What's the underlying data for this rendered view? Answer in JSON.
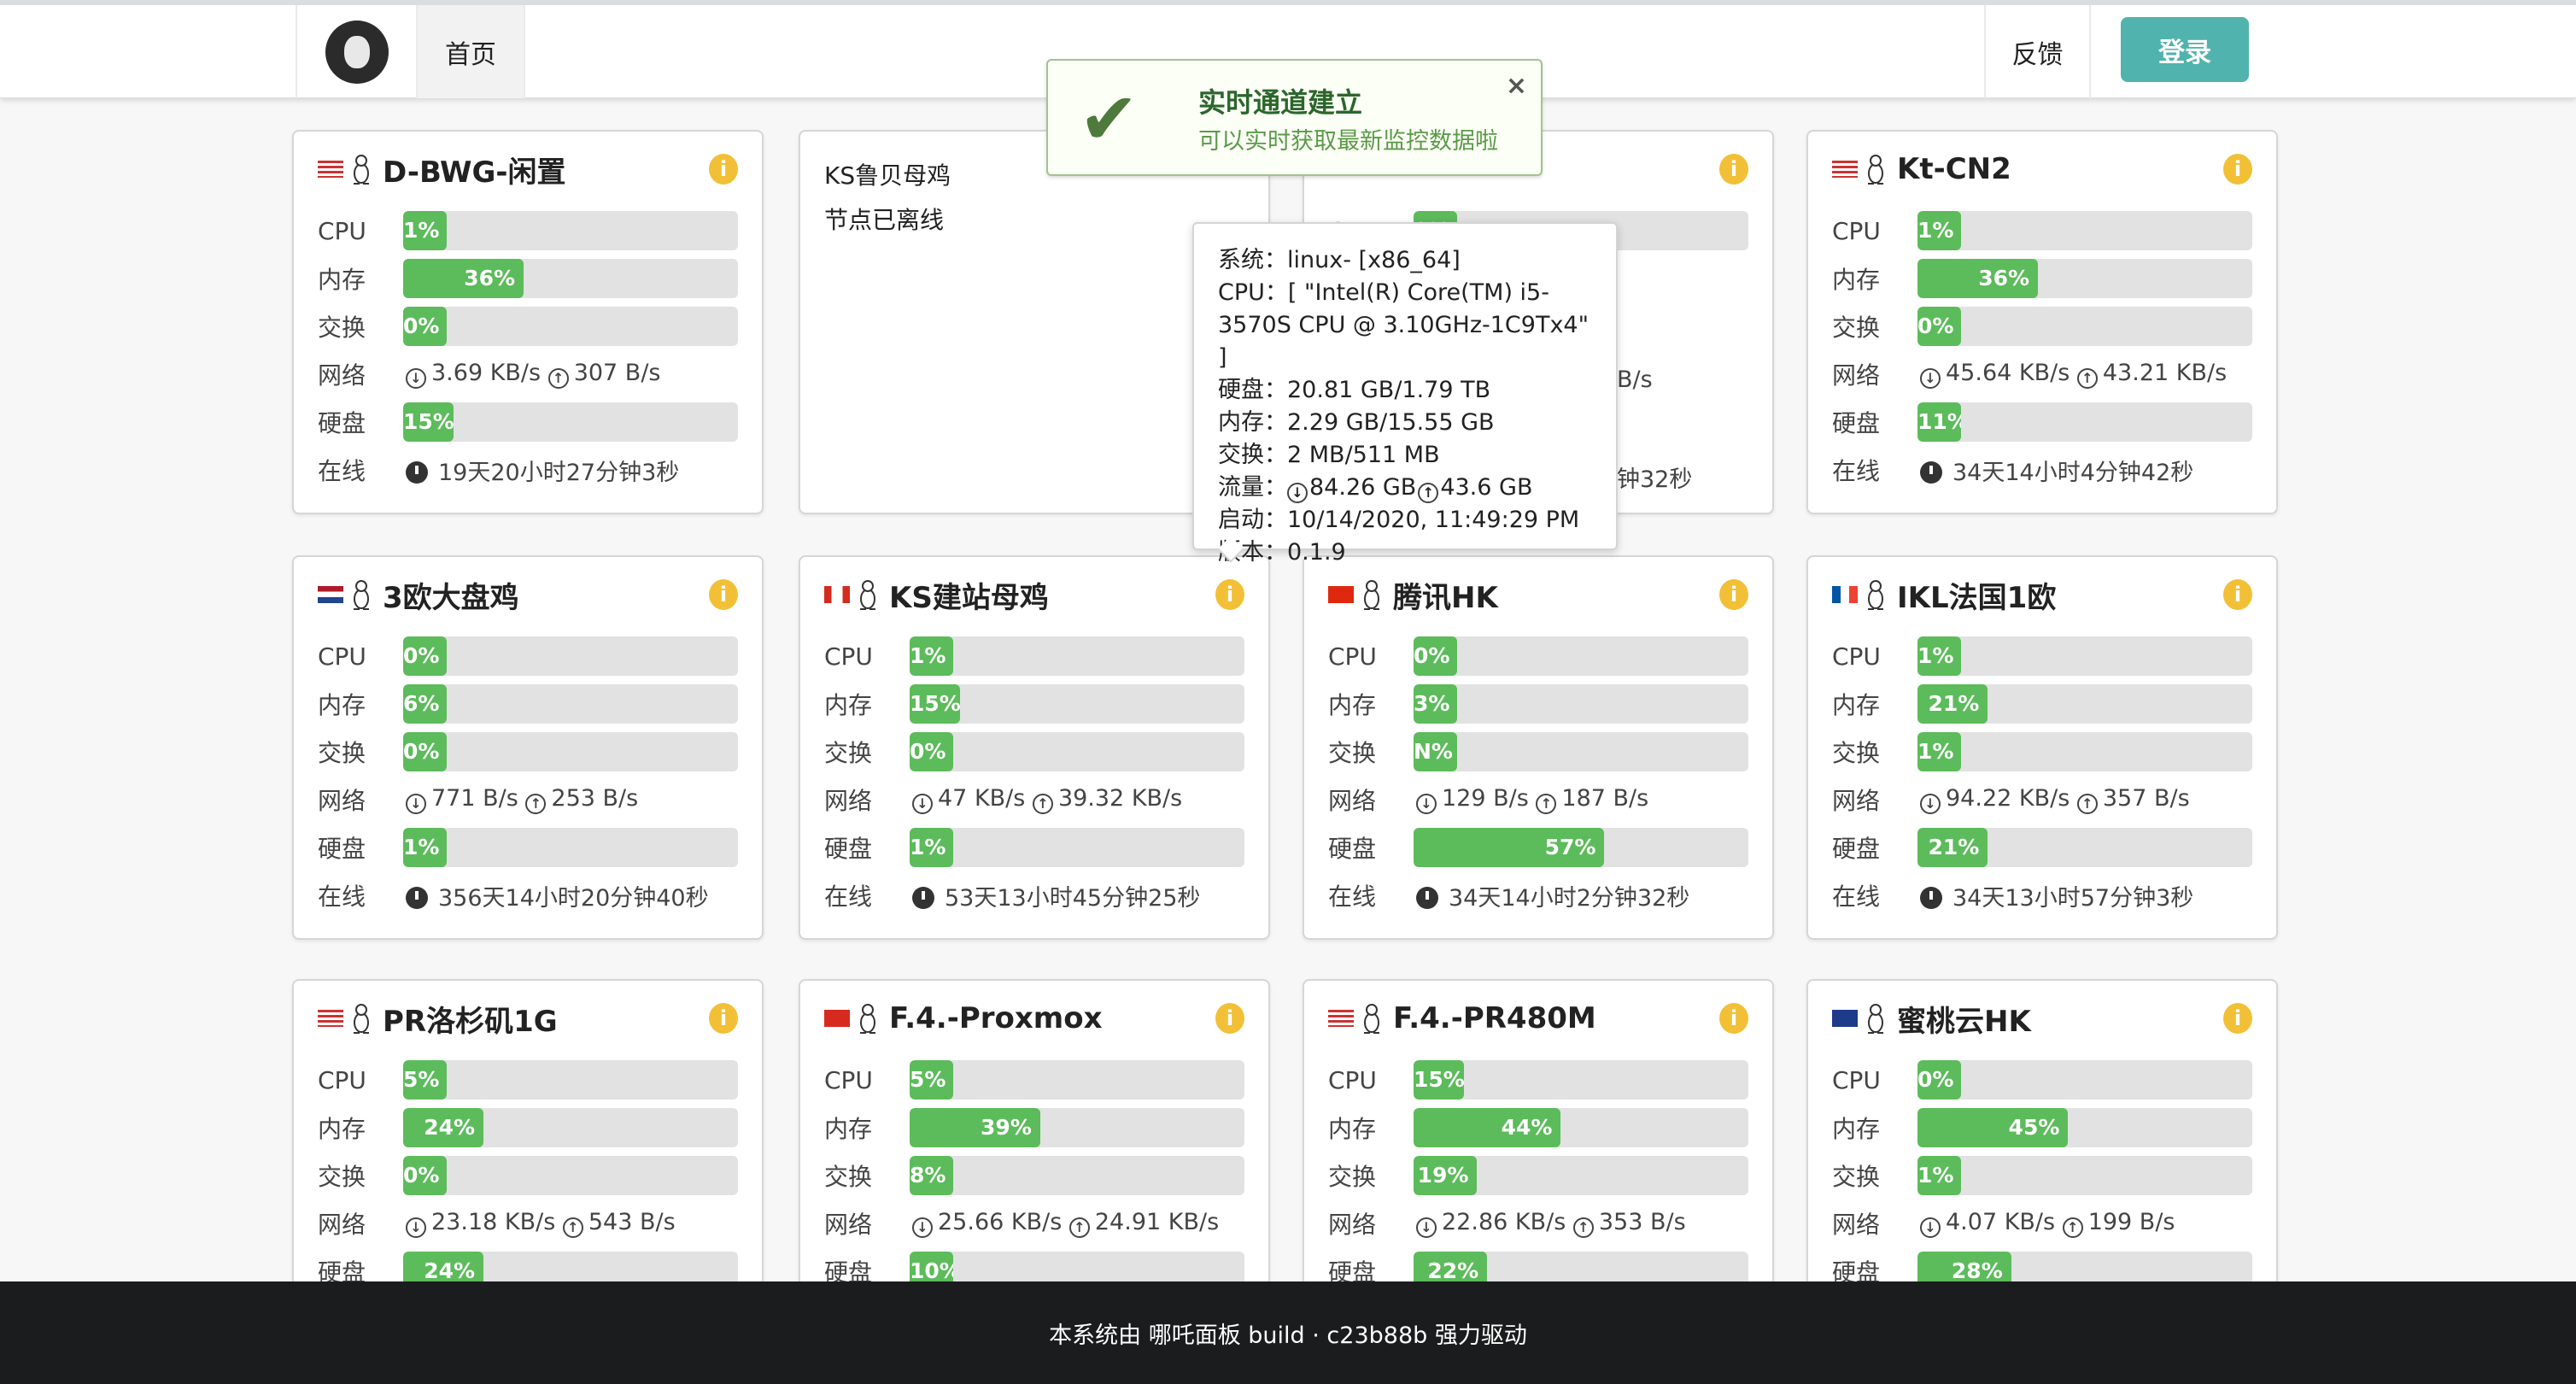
{
  "nav": {
    "home": "首页",
    "feedback": "反馈",
    "login": "登录"
  },
  "labels": {
    "cpu": "CPU",
    "mem": "内存",
    "swap": "交换",
    "net": "网络",
    "disk": "硬盘",
    "uptime": "在线"
  },
  "colors": {
    "bar_fill": "#5cbb5b",
    "bar_bg": "#e2e2e2",
    "login": "#50b3ae",
    "info": "#f2c037"
  },
  "toast": {
    "title": "实时通道建立",
    "message": "可以实时获取最新监控数据啦",
    "icon": "check-icon",
    "close": "×"
  },
  "tooltip": {
    "lines": [
      {
        "k": "系统：",
        "v": "linux- [x86_64]"
      },
      {
        "k": "CPU：",
        "v": "[ \"Intel(R) Core(TM) i5-"
      },
      {
        "k": "",
        "v": "3570S CPU @ 3.10GHz-1C9Tx4\" ]"
      },
      {
        "k": "硬盘：",
        "v": "20.81 GB/1.79 TB"
      },
      {
        "k": "内存：",
        "v": "2.29 GB/15.55 GB"
      },
      {
        "k": "交换：",
        "v": "2 MB/511 MB"
      },
      {
        "k": "流量：",
        "v": "84.26 GB",
        "v2": "43.6 GB"
      },
      {
        "k": "启动：",
        "v": "10/14/2020, 11:49:29 PM"
      },
      {
        "k": "版本：",
        "v": "0.1.9"
      }
    ]
  },
  "servers": [
    {
      "name": "D-BWG-闲置",
      "flag": "us",
      "cpu": 1,
      "cpu_label": "1%",
      "mem": 36,
      "mem_label": "36%",
      "swap": 0,
      "swap_label": "0%",
      "down": "3.69 KB/s",
      "up": "307 B/s",
      "disk": 15,
      "disk_label": "15%",
      "uptime": "19天20小时27分钟3秒"
    },
    {
      "name": "KS鲁贝母鸡",
      "offline": true,
      "status": "节点已离线"
    },
    {
      "hidden": true,
      "cpu": 0,
      "cpu_label": "0%",
      "net_fragment": "B/s",
      "uptime_fragment": "钟32秒"
    },
    {
      "name": "Kt-CN2",
      "flag": "us",
      "cpu": 1,
      "cpu_label": "1%",
      "mem": 36,
      "mem_label": "36%",
      "swap": 0,
      "swap_label": "0%",
      "down": "45.64 KB/s",
      "up": "43.21 KB/s",
      "disk": 11,
      "disk_label": "11%",
      "uptime": "34天14小时4分钟42秒"
    },
    {
      "name": "3欧大盘鸡",
      "flag": "nl",
      "cpu": 0,
      "cpu_label": "0%",
      "mem": 6,
      "mem_label": "6%",
      "swap": 0,
      "swap_label": "0%",
      "down": "771 B/s",
      "up": "253 B/s",
      "disk": 1,
      "disk_label": "1%",
      "uptime": "356天14小时20分钟40秒"
    },
    {
      "name": "KS建站母鸡",
      "flag": "ca",
      "cpu": 1,
      "cpu_label": "1%",
      "mem": 15,
      "mem_label": "15%",
      "swap": 0,
      "swap_label": "0%",
      "down": "47 KB/s",
      "up": "39.32 KB/s",
      "disk": 1,
      "disk_label": "1%",
      "uptime": "53天13小时45分钟25秒"
    },
    {
      "name": "腾讯HK",
      "flag": "hk",
      "cpu": 0,
      "cpu_label": "0%",
      "mem": 3,
      "mem_label": "3%",
      "swap": 0,
      "swap_label": "N%",
      "down": "129 B/s",
      "up": "187 B/s",
      "disk": 57,
      "disk_label": "57%",
      "uptime": "34天14小时2分钟32秒"
    },
    {
      "name": "IKL法国1欧",
      "flag": "fr",
      "cpu": 1,
      "cpu_label": "1%",
      "mem": 21,
      "mem_label": "21%",
      "swap": 1,
      "swap_label": "1%",
      "down": "94.22 KB/s",
      "up": "357 B/s",
      "disk": 21,
      "disk_label": "21%",
      "uptime": "34天13小时57分钟3秒"
    },
    {
      "name": "PR洛杉矶1G",
      "flag": "us",
      "cpu": 5,
      "cpu_label": "5%",
      "mem": 24,
      "mem_label": "24%",
      "swap": 0,
      "swap_label": "0%",
      "down": "23.18 KB/s",
      "up": "543 B/s",
      "disk": 24,
      "disk_label": "24%"
    },
    {
      "name": "F.4.-Proxmox",
      "flag": "cn",
      "cpu": 5,
      "cpu_label": "5%",
      "mem": 39,
      "mem_label": "39%",
      "swap": 8,
      "swap_label": "8%",
      "down": "25.66 KB/s",
      "up": "24.91 KB/s",
      "disk": 10,
      "disk_label": "10%"
    },
    {
      "name": "F.4.-PR480M",
      "flag": "us",
      "cpu": 15,
      "cpu_label": "15%",
      "mem": 44,
      "mem_label": "44%",
      "swap": 19,
      "swap_label": "19%",
      "down": "22.86 KB/s",
      "up": "353 B/s",
      "disk": 22,
      "disk_label": "22%"
    },
    {
      "name": "蜜桃云HK",
      "flag": "gb",
      "cpu": 0,
      "cpu_label": "0%",
      "mem": 45,
      "mem_label": "45%",
      "swap": 1,
      "swap_label": "1%",
      "down": "4.07 KB/s",
      "up": "199 B/s",
      "disk": 28,
      "disk_label": "28%"
    }
  ],
  "footer": "本系统由 哪吒面板 build · c23b88b 强力驱动"
}
